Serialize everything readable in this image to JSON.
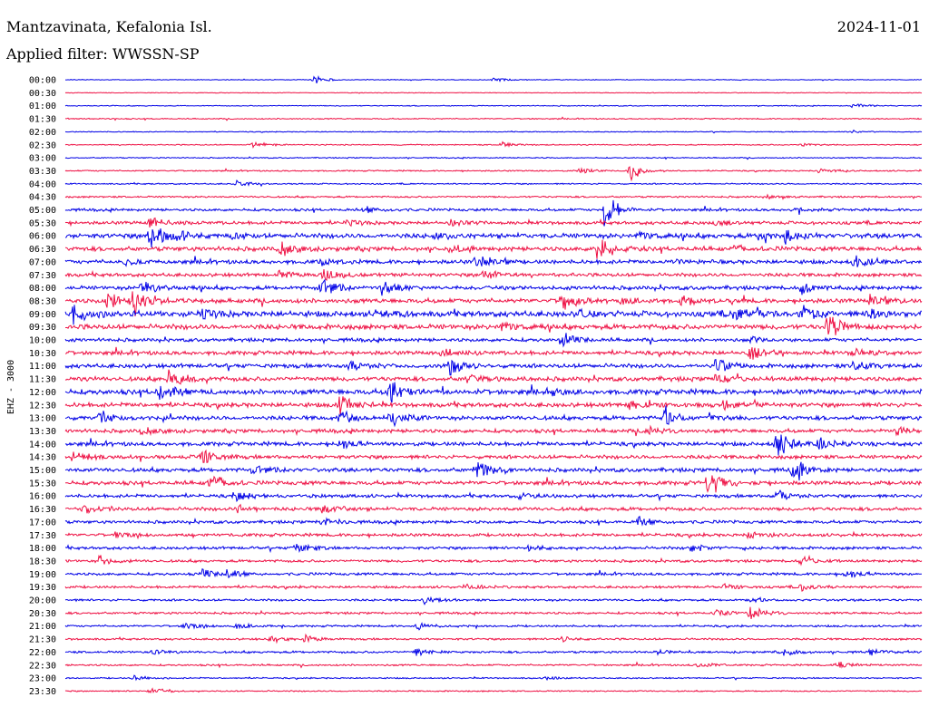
{
  "header": {
    "station": "Mantzavinata, Kefalonia Isl.",
    "date": "2024-11-01",
    "filter": "Applied filter: WWSSN-SP"
  },
  "chart_data": {
    "type": "line",
    "title": "Mantzavinata, Kefalonia Isl.",
    "ylabel": "EHZ - 3000",
    "row_labels": [
      "00:00",
      "00:30",
      "01:00",
      "01:30",
      "02:00",
      "02:30",
      "03:00",
      "03:30",
      "04:00",
      "04:30",
      "05:00",
      "05:30",
      "06:00",
      "06:30",
      "07:00",
      "07:30",
      "08:00",
      "08:30",
      "09:00",
      "09:30",
      "10:00",
      "10:30",
      "11:00",
      "11:30",
      "12:00",
      "12:30",
      "13:00",
      "13:30",
      "14:00",
      "14:30",
      "15:00",
      "15:30",
      "16:00",
      "16:30",
      "17:00",
      "17:30",
      "18:00",
      "18:30",
      "19:00",
      "19:30",
      "20:00",
      "20:30",
      "21:00",
      "21:30",
      "22:00",
      "22:30",
      "23:00",
      "23:30"
    ],
    "colors": [
      "#0000e6",
      "#ee1144"
    ],
    "noise_level": [
      0.3,
      0.3,
      0.4,
      0.5,
      0.4,
      0.5,
      0.5,
      0.6,
      0.6,
      0.8,
      1.2,
      1.5,
      2.2,
      2.0,
      1.8,
      1.6,
      1.8,
      2.0,
      2.6,
      2.3,
      1.6,
      1.8,
      1.9,
      2.0,
      2.3,
      2.0,
      1.9,
      1.7,
      1.8,
      1.7,
      1.8,
      1.8,
      1.5,
      1.6,
      1.4,
      1.4,
      1.3,
      1.2,
      1.2,
      1.1,
      1.0,
      1.0,
      0.9,
      0.9,
      1.0,
      0.8,
      0.6,
      0.6
    ],
    "events": [
      [
        [
          0.29,
          6
        ],
        [
          0.5,
          4
        ]
      ],
      [],
      [
        [
          0.92,
          3
        ]
      ],
      [],
      [
        [
          0.92,
          2
        ]
      ],
      [
        [
          0.22,
          4
        ],
        [
          0.51,
          3
        ],
        [
          0.86,
          3
        ]
      ],
      [],
      [
        [
          0.6,
          4
        ],
        [
          0.66,
          12
        ],
        [
          0.88,
          4
        ]
      ],
      [
        [
          0.2,
          4
        ]
      ],
      [
        [
          0.82,
          3
        ]
      ],
      [
        [
          0.35,
          4
        ],
        [
          0.63,
          30
        ],
        [
          0.85,
          4
        ]
      ],
      [
        [
          0.1,
          10
        ],
        [
          0.33,
          4
        ],
        [
          0.45,
          4
        ],
        [
          0.76,
          4
        ]
      ],
      [
        [
          0.1,
          20
        ],
        [
          0.13,
          10
        ],
        [
          0.19,
          5
        ],
        [
          0.43,
          5
        ],
        [
          0.67,
          5
        ],
        [
          0.81,
          5
        ],
        [
          0.84,
          10
        ]
      ],
      [
        [
          0.25,
          12
        ],
        [
          0.45,
          5
        ],
        [
          0.62,
          16
        ],
        [
          0.78,
          4
        ]
      ],
      [
        [
          0.07,
          5
        ],
        [
          0.3,
          5
        ],
        [
          0.48,
          12
        ],
        [
          0.7,
          4
        ],
        [
          0.92,
          10
        ]
      ],
      [
        [
          0.25,
          5
        ],
        [
          0.3,
          10
        ],
        [
          0.49,
          10
        ]
      ],
      [
        [
          0.09,
          10
        ],
        [
          0.3,
          14
        ],
        [
          0.37,
          12
        ],
        [
          0.86,
          10
        ]
      ],
      [
        [
          0.05,
          14
        ],
        [
          0.08,
          16
        ],
        [
          0.58,
          14
        ],
        [
          0.65,
          6
        ],
        [
          0.72,
          6
        ],
        [
          0.94,
          8
        ]
      ],
      [
        [
          0.01,
          16
        ],
        [
          0.16,
          6
        ],
        [
          0.36,
          6
        ],
        [
          0.6,
          6
        ],
        [
          0.78,
          12
        ],
        [
          0.86,
          14
        ],
        [
          0.94,
          8
        ]
      ],
      [
        [
          0.51,
          6
        ],
        [
          0.89,
          18
        ]
      ],
      [
        [
          0.58,
          10
        ],
        [
          0.8,
          5
        ]
      ],
      [
        [
          0.44,
          6
        ],
        [
          0.8,
          10
        ],
        [
          0.92,
          6
        ]
      ],
      [
        [
          0.33,
          6
        ],
        [
          0.45,
          14
        ],
        [
          0.76,
          10
        ],
        [
          0.92,
          6
        ]
      ],
      [
        [
          0.12,
          14
        ],
        [
          0.47,
          10
        ],
        [
          0.76,
          5
        ]
      ],
      [
        [
          0.11,
          14
        ],
        [
          0.38,
          16
        ],
        [
          0.57,
          6
        ]
      ],
      [
        [
          0.32,
          12
        ],
        [
          0.66,
          6
        ],
        [
          0.77,
          6
        ]
      ],
      [
        [
          0.04,
          8
        ],
        [
          0.32,
          10
        ],
        [
          0.38,
          10
        ],
        [
          0.7,
          14
        ],
        [
          0.75,
          6
        ]
      ],
      [
        [
          0.09,
          6
        ],
        [
          0.68,
          6
        ],
        [
          0.97,
          6
        ]
      ],
      [
        [
          0.32,
          6
        ],
        [
          0.83,
          22
        ],
        [
          0.88,
          8
        ]
      ],
      [
        [
          0.01,
          8
        ],
        [
          0.16,
          12
        ]
      ],
      [
        [
          0.22,
          8
        ],
        [
          0.48,
          16
        ],
        [
          0.85,
          16
        ]
      ],
      [
        [
          0.17,
          12
        ],
        [
          0.75,
          22
        ]
      ],
      [
        [
          0.2,
          6
        ],
        [
          0.53,
          6
        ],
        [
          0.83,
          6
        ]
      ],
      [
        [
          0.02,
          6
        ],
        [
          0.2,
          6
        ],
        [
          0.3,
          6
        ]
      ],
      [
        [
          0.3,
          6
        ],
        [
          0.67,
          6
        ]
      ],
      [
        [
          0.06,
          5
        ],
        [
          0.8,
          5
        ]
      ],
      [
        [
          0.27,
          6
        ],
        [
          0.54,
          6
        ],
        [
          0.73,
          6
        ]
      ],
      [
        [
          0.04,
          6
        ],
        [
          0.86,
          5
        ]
      ],
      [
        [
          0.16,
          6
        ],
        [
          0.19,
          6
        ],
        [
          0.91,
          6
        ]
      ],
      [
        [
          0.47,
          4
        ],
        [
          0.77,
          4
        ],
        [
          0.86,
          5
        ]
      ],
      [
        [
          0.42,
          6
        ],
        [
          0.8,
          4
        ]
      ],
      [
        [
          0.76,
          5
        ],
        [
          0.8,
          12
        ]
      ],
      [
        [
          0.14,
          6
        ],
        [
          0.2,
          5
        ],
        [
          0.41,
          6
        ]
      ],
      [
        [
          0.24,
          5
        ],
        [
          0.28,
          5
        ],
        [
          0.58,
          4
        ]
      ],
      [
        [
          0.1,
          5
        ],
        [
          0.41,
          6
        ],
        [
          0.69,
          4
        ],
        [
          0.84,
          5
        ],
        [
          0.94,
          4
        ]
      ],
      [
        [
          0.74,
          5
        ],
        [
          0.9,
          6
        ]
      ],
      [
        [
          0.08,
          4
        ],
        [
          0.56,
          3
        ]
      ],
      [
        [
          0.1,
          5
        ]
      ]
    ],
    "grid": false
  }
}
